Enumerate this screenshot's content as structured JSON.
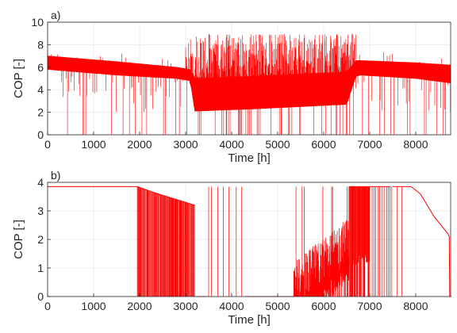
{
  "chart_data": [
    {
      "panel_label": "a)",
      "type": "line",
      "xlabel": "Time [h]",
      "ylabel": "COP [-]",
      "xlim": [
        0,
        8760
      ],
      "ylim": [
        0,
        10
      ],
      "xticks": [
        0,
        1000,
        2000,
        3000,
        4000,
        5000,
        6000,
        7000,
        8000
      ],
      "yticks": [
        0,
        2,
        4,
        6,
        8,
        10
      ],
      "grid": true,
      "line_color": "#ff0000",
      "envelope": {
        "x": [
          0,
          1500,
          2800,
          3100,
          3200,
          4500,
          5500,
          6500,
          6700,
          6800,
          8000,
          8760
        ],
        "upper": [
          7.0,
          6.5,
          6.0,
          5.8,
          5.0,
          5.2,
          5.4,
          5.6,
          6.6,
          6.6,
          6.4,
          6.2
        ],
        "lower": [
          5.8,
          5.3,
          5.0,
          4.8,
          2.1,
          2.3,
          2.5,
          2.7,
          5.2,
          5.3,
          5.0,
          4.6
        ]
      },
      "spikes": {
        "sparse_ranges": [
          [
            0,
            3000
          ],
          [
            6700,
            8760
          ]
        ],
        "dense_range": [
          3000,
          6700
        ],
        "dense_peak_range": [
          5,
          9
        ],
        "max_value": 8.9
      }
    },
    {
      "panel_label": "b)",
      "type": "line",
      "xlabel": "Time [h]",
      "ylabel": "COP [-]",
      "xlim": [
        0,
        8760
      ],
      "ylim": [
        0,
        4
      ],
      "xticks": [
        0,
        1000,
        2000,
        3000,
        4000,
        5000,
        6000,
        7000,
        8000
      ],
      "yticks": [
        0,
        1,
        2,
        3,
        4
      ],
      "grid": true,
      "line_color": "#ff0000",
      "max_level": 3.85,
      "plateaus": [
        [
          0,
          1950
        ],
        [
          7500,
          7900
        ]
      ],
      "decline": {
        "x": [
          7900,
          8100,
          8400,
          8700,
          8730
        ],
        "y": [
          3.85,
          3.6,
          2.8,
          2.2,
          2.1
        ]
      },
      "upper_boundary": {
        "x": [
          1950,
          2300,
          2700,
          3000,
          3200
        ],
        "y": [
          3.85,
          3.65,
          3.45,
          3.3,
          3.2
        ]
      },
      "zero_segments": [
        [
          3250,
          3450
        ],
        [
          4300,
          5350
        ],
        [
          8760,
          8780
        ]
      ],
      "isolated_spikes": [
        3500,
        3560,
        3700,
        3820,
        3940,
        4100,
        4220,
        7480,
        7600,
        7700
      ],
      "dense_bursts": [
        {
          "range": [
            1950,
            3200
          ],
          "pattern": "up_to_upper"
        },
        {
          "range": [
            5350,
            6550
          ],
          "pattern": "noisy_mid"
        },
        {
          "range": [
            6550,
            7000
          ],
          "pattern": "full"
        },
        {
          "range": [
            7000,
            7450
          ],
          "pattern": "sparse_full"
        }
      ]
    }
  ]
}
